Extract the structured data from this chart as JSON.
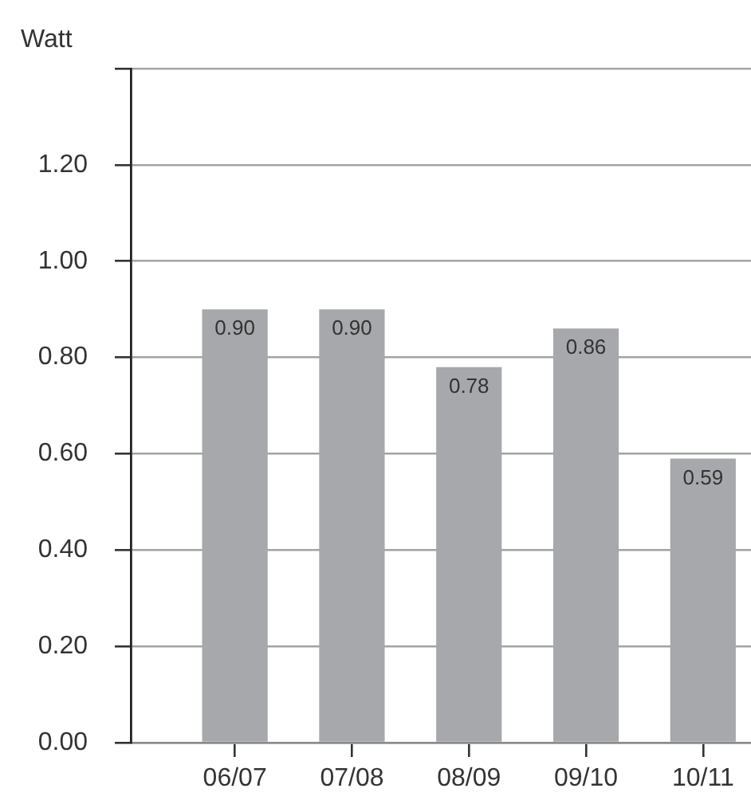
{
  "chart_data": {
    "type": "bar",
    "ylabel": "Watt",
    "categories": [
      "06/07",
      "07/08",
      "08/09",
      "09/10",
      "10/11"
    ],
    "values": [
      0.9,
      0.9,
      0.78,
      0.86,
      0.59
    ],
    "value_labels": [
      "0.90",
      "0.90",
      "0.78",
      "0.86",
      "0.59"
    ],
    "color": "#a7a8ab",
    "ylim": [
      0,
      1.4
    ],
    "yticks": [
      {
        "value": 0,
        "label": "0.00"
      },
      {
        "value": 0.2,
        "label": "0.20"
      },
      {
        "value": 0.4,
        "label": "0.40"
      },
      {
        "value": 0.6,
        "label": "0.60"
      },
      {
        "value": 0.8,
        "label": "0.80"
      },
      {
        "value": 1,
        "label": "1.00"
      },
      {
        "value": 1.2,
        "label": "1.20"
      },
      {
        "value": 1.4,
        "label": null
      }
    ],
    "grid": "y"
  }
}
